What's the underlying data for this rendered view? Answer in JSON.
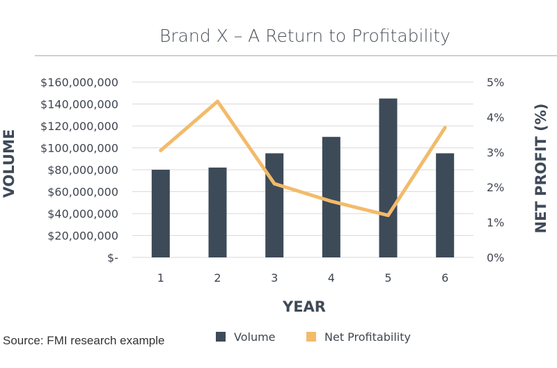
{
  "chart_data": {
    "type": "bar+line",
    "title": "Brand X – A Return to Profitability",
    "xlabel": "YEAR",
    "ylabel_left": "VOLUME",
    "ylabel_right": "NET PROFIT (%)",
    "categories": [
      "1",
      "2",
      "3",
      "4",
      "5",
      "6"
    ],
    "y_left_ticks": [
      "$-",
      "$20,000,000",
      "$40,000,000",
      "$60,000,000",
      "$80,000,000",
      "$100,000,000",
      "$120,000,000",
      "$140,000,000",
      "$160,000,000"
    ],
    "y_right_ticks": [
      "0%",
      "1%",
      "2%",
      "3%",
      "4%",
      "5%"
    ],
    "ylim_left": [
      0,
      160000000
    ],
    "ylim_right": [
      0,
      5
    ],
    "series": [
      {
        "name": "Volume",
        "type": "bar",
        "axis": "left",
        "color": "#3d4a58",
        "values": [
          80000000,
          82000000,
          95000000,
          110000000,
          145000000,
          95000000
        ]
      },
      {
        "name": "Net Profitability",
        "type": "line",
        "axis": "right",
        "color": "#f2bb6a",
        "values": [
          3.05,
          4.45,
          2.1,
          1.6,
          1.2,
          3.7
        ]
      }
    ],
    "grid": "horizontal",
    "legend_position": "bottom",
    "source": "Source: FMI research example"
  }
}
